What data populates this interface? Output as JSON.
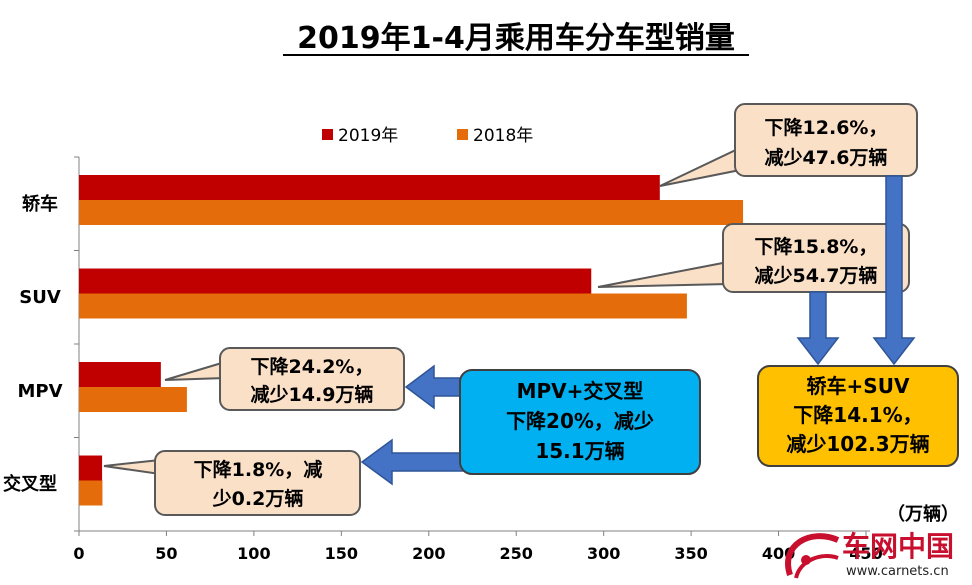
{
  "chart_data": {
    "type": "bar",
    "orientation": "horizontal",
    "title": "2019年1-4月乘用车分车型销量",
    "unit_label": "（万辆）",
    "categories": [
      "轿车",
      "SUV",
      "MPV",
      "交叉型"
    ],
    "series": [
      {
        "name": "2019年",
        "color": "#c00000",
        "values": [
          332.1,
          292.9,
          46.8,
          13.2
        ]
      },
      {
        "name": "2018年",
        "color": "#e46c0a",
        "values": [
          379.7,
          347.6,
          61.7,
          13.4
        ]
      }
    ],
    "xlim": [
      0,
      450
    ],
    "xticks": [
      "0",
      "50",
      "100",
      "150",
      "200",
      "250",
      "300",
      "350",
      "400",
      "450"
    ],
    "legend_position": "top",
    "grid": false,
    "annotations": [
      {
        "line1": "下降12.6%，",
        "line2": "减少47.6万辆"
      },
      {
        "line1": "下降15.8%，",
        "line2": "减少54.7万辆"
      },
      {
        "line1": "下降24.2%，",
        "line2": "减少14.9万辆"
      },
      {
        "line1": "下降1.8%，减",
        "line2": "少0.2万辆"
      }
    ],
    "summaries": [
      {
        "line1": "MPV+交叉型",
        "line2": "下降20%，减少",
        "line3": "15.1万辆",
        "color": "#00b0f0"
      },
      {
        "line1": "轿车+SUV",
        "line2": "下降14.1%，",
        "line3": "减少102.3万辆",
        "color": "#ffc000"
      }
    ]
  },
  "watermark": {
    "brand": "车网中国",
    "url": "www.carnets.cn"
  }
}
